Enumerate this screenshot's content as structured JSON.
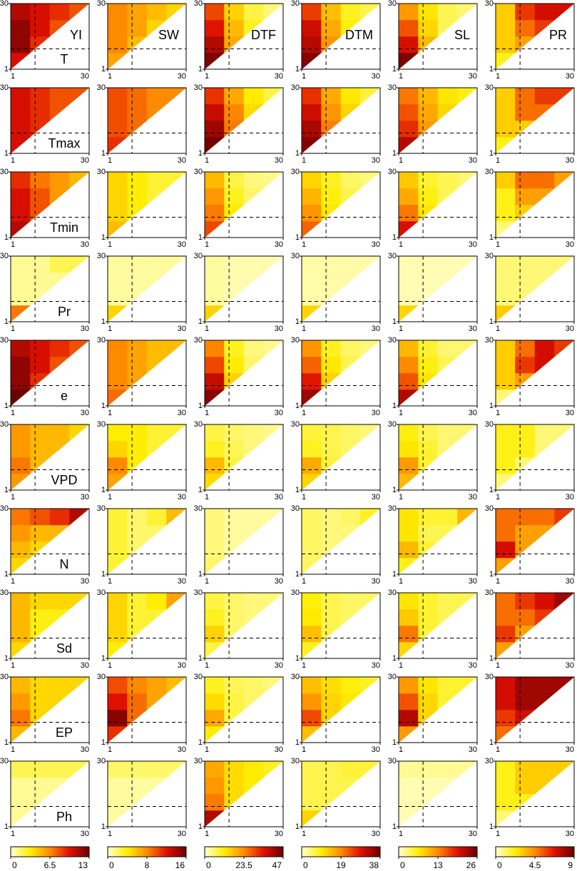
{
  "chart_data": {
    "type": "triangle-heatmap-grid",
    "rows": [
      "T",
      "Tmax",
      "Tmin",
      "Pr",
      "e",
      "VPD",
      "N",
      "Sd",
      "EP",
      "Ph"
    ],
    "columns": [
      "YI",
      "SW",
      "DTF",
      "DTM",
      "SL",
      "PR"
    ],
    "xlim": [
      1,
      30
    ],
    "ylim": [
      1,
      30
    ],
    "xticks": [
      1,
      30
    ],
    "yticks": [
      1,
      30
    ],
    "vline": 10,
    "hline": 10,
    "colormap": [
      "#ffffd4",
      "#ffee00",
      "#ff8a00",
      "#e01000",
      "#6b0000"
    ],
    "colorbars": [
      {
        "lim": [
          0,
          13
        ],
        "ticks": [
          0,
          6.5,
          13
        ]
      },
      {
        "lim": [
          0,
          16
        ],
        "ticks": [
          0,
          8,
          16
        ]
      },
      {
        "lim": [
          0,
          47
        ],
        "ticks": [
          0,
          23.5,
          47
        ]
      },
      {
        "lim": [
          0,
          38
        ],
        "ticks": [
          0,
          19,
          38
        ]
      },
      {
        "lim": [
          0,
          26
        ],
        "ticks": [
          0,
          13,
          26
        ]
      },
      {
        "lim": [
          0,
          9
        ],
        "ticks": [
          0,
          4.5,
          9
        ]
      }
    ],
    "panels": [
      [
        [
          [
            10
          ],
          [
            12,
            9
          ],
          [
            12,
            10,
            8
          ],
          [
            11,
            10,
            9,
            8
          ]
        ],
        [
          [
            7
          ],
          [
            8,
            6
          ],
          [
            8,
            7,
            5
          ],
          [
            8,
            7,
            6,
            5
          ]
        ],
        [
          [
            45
          ],
          [
            40,
            20
          ],
          [
            35,
            18,
            10
          ],
          [
            30,
            15,
            8,
            5
          ]
        ],
        [
          [
            36
          ],
          [
            32,
            18
          ],
          [
            30,
            16,
            9
          ],
          [
            25,
            14,
            8,
            6
          ]
        ],
        [
          [
            25
          ],
          [
            20,
            10
          ],
          [
            16,
            8,
            4
          ],
          [
            12,
            7,
            4,
            3
          ]
        ],
        [
          [
            2
          ],
          [
            3,
            4
          ],
          [
            3,
            5,
            6
          ],
          [
            3,
            6,
            7,
            7
          ]
        ]
      ],
      [
        [
          [
            10
          ],
          [
            10,
            9
          ],
          [
            10,
            9,
            8
          ],
          [
            10,
            9,
            8,
            8
          ]
        ],
        [
          [
            11
          ],
          [
            10,
            9
          ],
          [
            10,
            9,
            8
          ],
          [
            10,
            9,
            8,
            8
          ]
        ],
        [
          [
            46
          ],
          [
            42,
            25
          ],
          [
            38,
            24,
            14
          ],
          [
            32,
            20,
            12,
            8
          ]
        ],
        [
          [
            36
          ],
          [
            33,
            20
          ],
          [
            30,
            18,
            12
          ],
          [
            26,
            16,
            10,
            7
          ]
        ],
        [
          [
            22
          ],
          [
            18,
            12
          ],
          [
            16,
            11,
            8
          ],
          [
            14,
            10,
            7,
            6
          ]
        ],
        [
          [
            2
          ],
          [
            3,
            3
          ],
          [
            3,
            5,
            5
          ],
          [
            3,
            5,
            6,
            6
          ]
        ]
      ],
      [
        [
          [
            11
          ],
          [
            10,
            8
          ],
          [
            10,
            8,
            6
          ],
          [
            9,
            7,
            6,
            5
          ]
        ],
        [
          [
            6
          ],
          [
            5,
            4
          ],
          [
            5,
            4,
            3
          ],
          [
            5,
            4,
            3,
            3
          ]
        ],
        [
          [
            30
          ],
          [
            25,
            12
          ],
          [
            22,
            10,
            6
          ],
          [
            18,
            8,
            5,
            4
          ]
        ],
        [
          [
            22
          ],
          [
            18,
            10
          ],
          [
            15,
            9,
            6
          ],
          [
            12,
            8,
            5,
            4
          ]
        ],
        [
          [
            20
          ],
          [
            14,
            7
          ],
          [
            11,
            6,
            4
          ],
          [
            9,
            5,
            4,
            3
          ]
        ],
        [
          [
            1
          ],
          [
            2,
            3
          ],
          [
            2,
            4,
            4
          ],
          [
            3,
            5,
            5,
            4
          ]
        ]
      ],
      [
        [
          [
            7
          ],
          [
            1,
            1
          ],
          [
            1,
            1,
            1
          ],
          [
            1,
            1,
            2,
            2
          ]
        ],
        [
          [
            5
          ],
          [
            1,
            1
          ],
          [
            1,
            1,
            1
          ],
          [
            1,
            1,
            1,
            1
          ]
        ],
        [
          [
            15
          ],
          [
            3,
            2
          ],
          [
            3,
            2,
            2
          ],
          [
            3,
            2,
            2,
            2
          ]
        ],
        [
          [
            12
          ],
          [
            2,
            2
          ],
          [
            2,
            2,
            2
          ],
          [
            2,
            2,
            2,
            2
          ]
        ],
        [
          [
            8
          ],
          [
            1,
            1
          ],
          [
            1,
            1,
            1
          ],
          [
            1,
            1,
            1,
            1
          ]
        ],
        [
          [
            3
          ],
          [
            1,
            1
          ],
          [
            1,
            1,
            1
          ],
          [
            1,
            1,
            1,
            1
          ]
        ]
      ],
      [
        [
          [
            13
          ],
          [
            12,
            9
          ],
          [
            12,
            10,
            8
          ],
          [
            11,
            10,
            9,
            8
          ]
        ],
        [
          [
            9
          ],
          [
            8,
            7
          ],
          [
            8,
            7,
            6
          ],
          [
            8,
            7,
            6,
            6
          ]
        ],
        [
          [
            44
          ],
          [
            38,
            15
          ],
          [
            30,
            12,
            6
          ],
          [
            24,
            10,
            5,
            4
          ]
        ],
        [
          [
            34
          ],
          [
            28,
            12
          ],
          [
            22,
            10,
            6
          ],
          [
            18,
            8,
            5,
            4
          ]
        ],
        [
          [
            22
          ],
          [
            16,
            7
          ],
          [
            13,
            6,
            4
          ],
          [
            10,
            5,
            3,
            3
          ]
        ],
        [
          [
            1
          ],
          [
            3,
            4
          ],
          [
            3,
            6,
            7
          ],
          [
            3,
            5,
            7,
            6
          ]
        ]
      ],
      [
        [
          [
            6
          ],
          [
            7,
            5
          ],
          [
            6,
            5,
            5
          ],
          [
            6,
            5,
            5,
            4
          ]
        ],
        [
          [
            7
          ],
          [
            8,
            4
          ],
          [
            5,
            4,
            3
          ],
          [
            4,
            4,
            3,
            3
          ]
        ],
        [
          [
            14
          ],
          [
            18,
            8
          ],
          [
            10,
            7,
            5
          ],
          [
            8,
            6,
            5,
            4
          ]
        ],
        [
          [
            12
          ],
          [
            16,
            7
          ],
          [
            8,
            6,
            5
          ],
          [
            7,
            6,
            5,
            4
          ]
        ],
        [
          [
            10
          ],
          [
            12,
            5
          ],
          [
            7,
            5,
            3
          ],
          [
            6,
            4,
            3,
            3
          ]
        ],
        [
          [
            1
          ],
          [
            2,
            1
          ],
          [
            2,
            2,
            1
          ],
          [
            2,
            2,
            1,
            1
          ]
        ]
      ],
      [
        [
          [
            4
          ],
          [
            5,
            4
          ],
          [
            6,
            5,
            5
          ],
          [
            7,
            8,
            9,
            11
          ]
        ],
        [
          [
            3
          ],
          [
            3,
            2
          ],
          [
            3,
            2,
            2
          ],
          [
            3,
            2,
            3,
            6
          ]
        ],
        [
          [
            6
          ],
          [
            5,
            3
          ],
          [
            5,
            3,
            3
          ],
          [
            5,
            3,
            3,
            3
          ]
        ],
        [
          [
            5
          ],
          [
            5,
            4
          ],
          [
            5,
            4,
            4
          ],
          [
            5,
            4,
            5,
            8
          ]
        ],
        [
          [
            6
          ],
          [
            10,
            5
          ],
          [
            7,
            4,
            4
          ],
          [
            7,
            5,
            5,
            10
          ]
        ],
        [
          [
            4
          ],
          [
            7,
            4
          ],
          [
            5,
            4,
            4
          ],
          [
            5,
            5,
            5,
            6
          ]
        ]
      ],
      [
        [
          [
            4
          ],
          [
            5,
            3
          ],
          [
            5,
            3,
            3
          ],
          [
            5,
            4,
            4,
            4
          ]
        ],
        [
          [
            4
          ],
          [
            5,
            3
          ],
          [
            5,
            3,
            3
          ],
          [
            5,
            3,
            4,
            7
          ]
        ],
        [
          [
            8
          ],
          [
            15,
            6
          ],
          [
            10,
            6,
            5
          ],
          [
            8,
            6,
            5,
            5
          ]
        ],
        [
          [
            8
          ],
          [
            14,
            6
          ],
          [
            10,
            6,
            5
          ],
          [
            9,
            6,
            5,
            5
          ]
        ],
        [
          [
            8
          ],
          [
            14,
            5
          ],
          [
            9,
            5,
            4
          ],
          [
            7,
            5,
            4,
            4
          ]
        ],
        [
          [
            4
          ],
          [
            6,
            4
          ],
          [
            5,
            5,
            6
          ],
          [
            5,
            6,
            7,
            8
          ]
        ]
      ],
      [
        [
          [
            5
          ],
          [
            7,
            4
          ],
          [
            6,
            4,
            4
          ],
          [
            5,
            4,
            4,
            4
          ]
        ],
        [
          [
            11
          ],
          [
            15,
            9
          ],
          [
            12,
            9,
            7
          ],
          [
            10,
            8,
            7,
            6
          ]
        ],
        [
          [
            12
          ],
          [
            20,
            8
          ],
          [
            14,
            8,
            6
          ],
          [
            10,
            7,
            6,
            5
          ]
        ],
        [
          [
            14
          ],
          [
            24,
            12
          ],
          [
            18,
            12,
            10
          ],
          [
            14,
            11,
            9,
            8
          ]
        ],
        [
          [
            12
          ],
          [
            22,
            8
          ],
          [
            16,
            8,
            5
          ],
          [
            12,
            7,
            5,
            5
          ]
        ],
        [
          [
            5
          ],
          [
            6,
            7
          ],
          [
            7,
            8,
            8
          ],
          [
            7,
            8,
            8,
            8
          ]
        ]
      ],
      [
        [
          [
            1
          ],
          [
            1,
            1
          ],
          [
            1,
            1,
            1
          ],
          [
            2,
            2,
            2,
            2
          ]
        ],
        [
          [
            1
          ],
          [
            1,
            1
          ],
          [
            1,
            1,
            1
          ],
          [
            2,
            2,
            2,
            2
          ]
        ],
        [
          [
            40
          ],
          [
            25,
            14
          ],
          [
            22,
            14,
            12
          ],
          [
            20,
            14,
            12,
            10
          ]
        ],
        [
          [
            12
          ],
          [
            6,
            6
          ],
          [
            6,
            6,
            6
          ],
          [
            6,
            6,
            7,
            7
          ]
        ],
        [
          [
            1
          ],
          [
            1,
            1
          ],
          [
            1,
            1,
            1
          ],
          [
            2,
            2,
            2,
            2
          ]
        ],
        [
          [
            1
          ],
          [
            2,
            2
          ],
          [
            2,
            3,
            3
          ],
          [
            2,
            3,
            3,
            3
          ]
        ]
      ]
    ]
  }
}
